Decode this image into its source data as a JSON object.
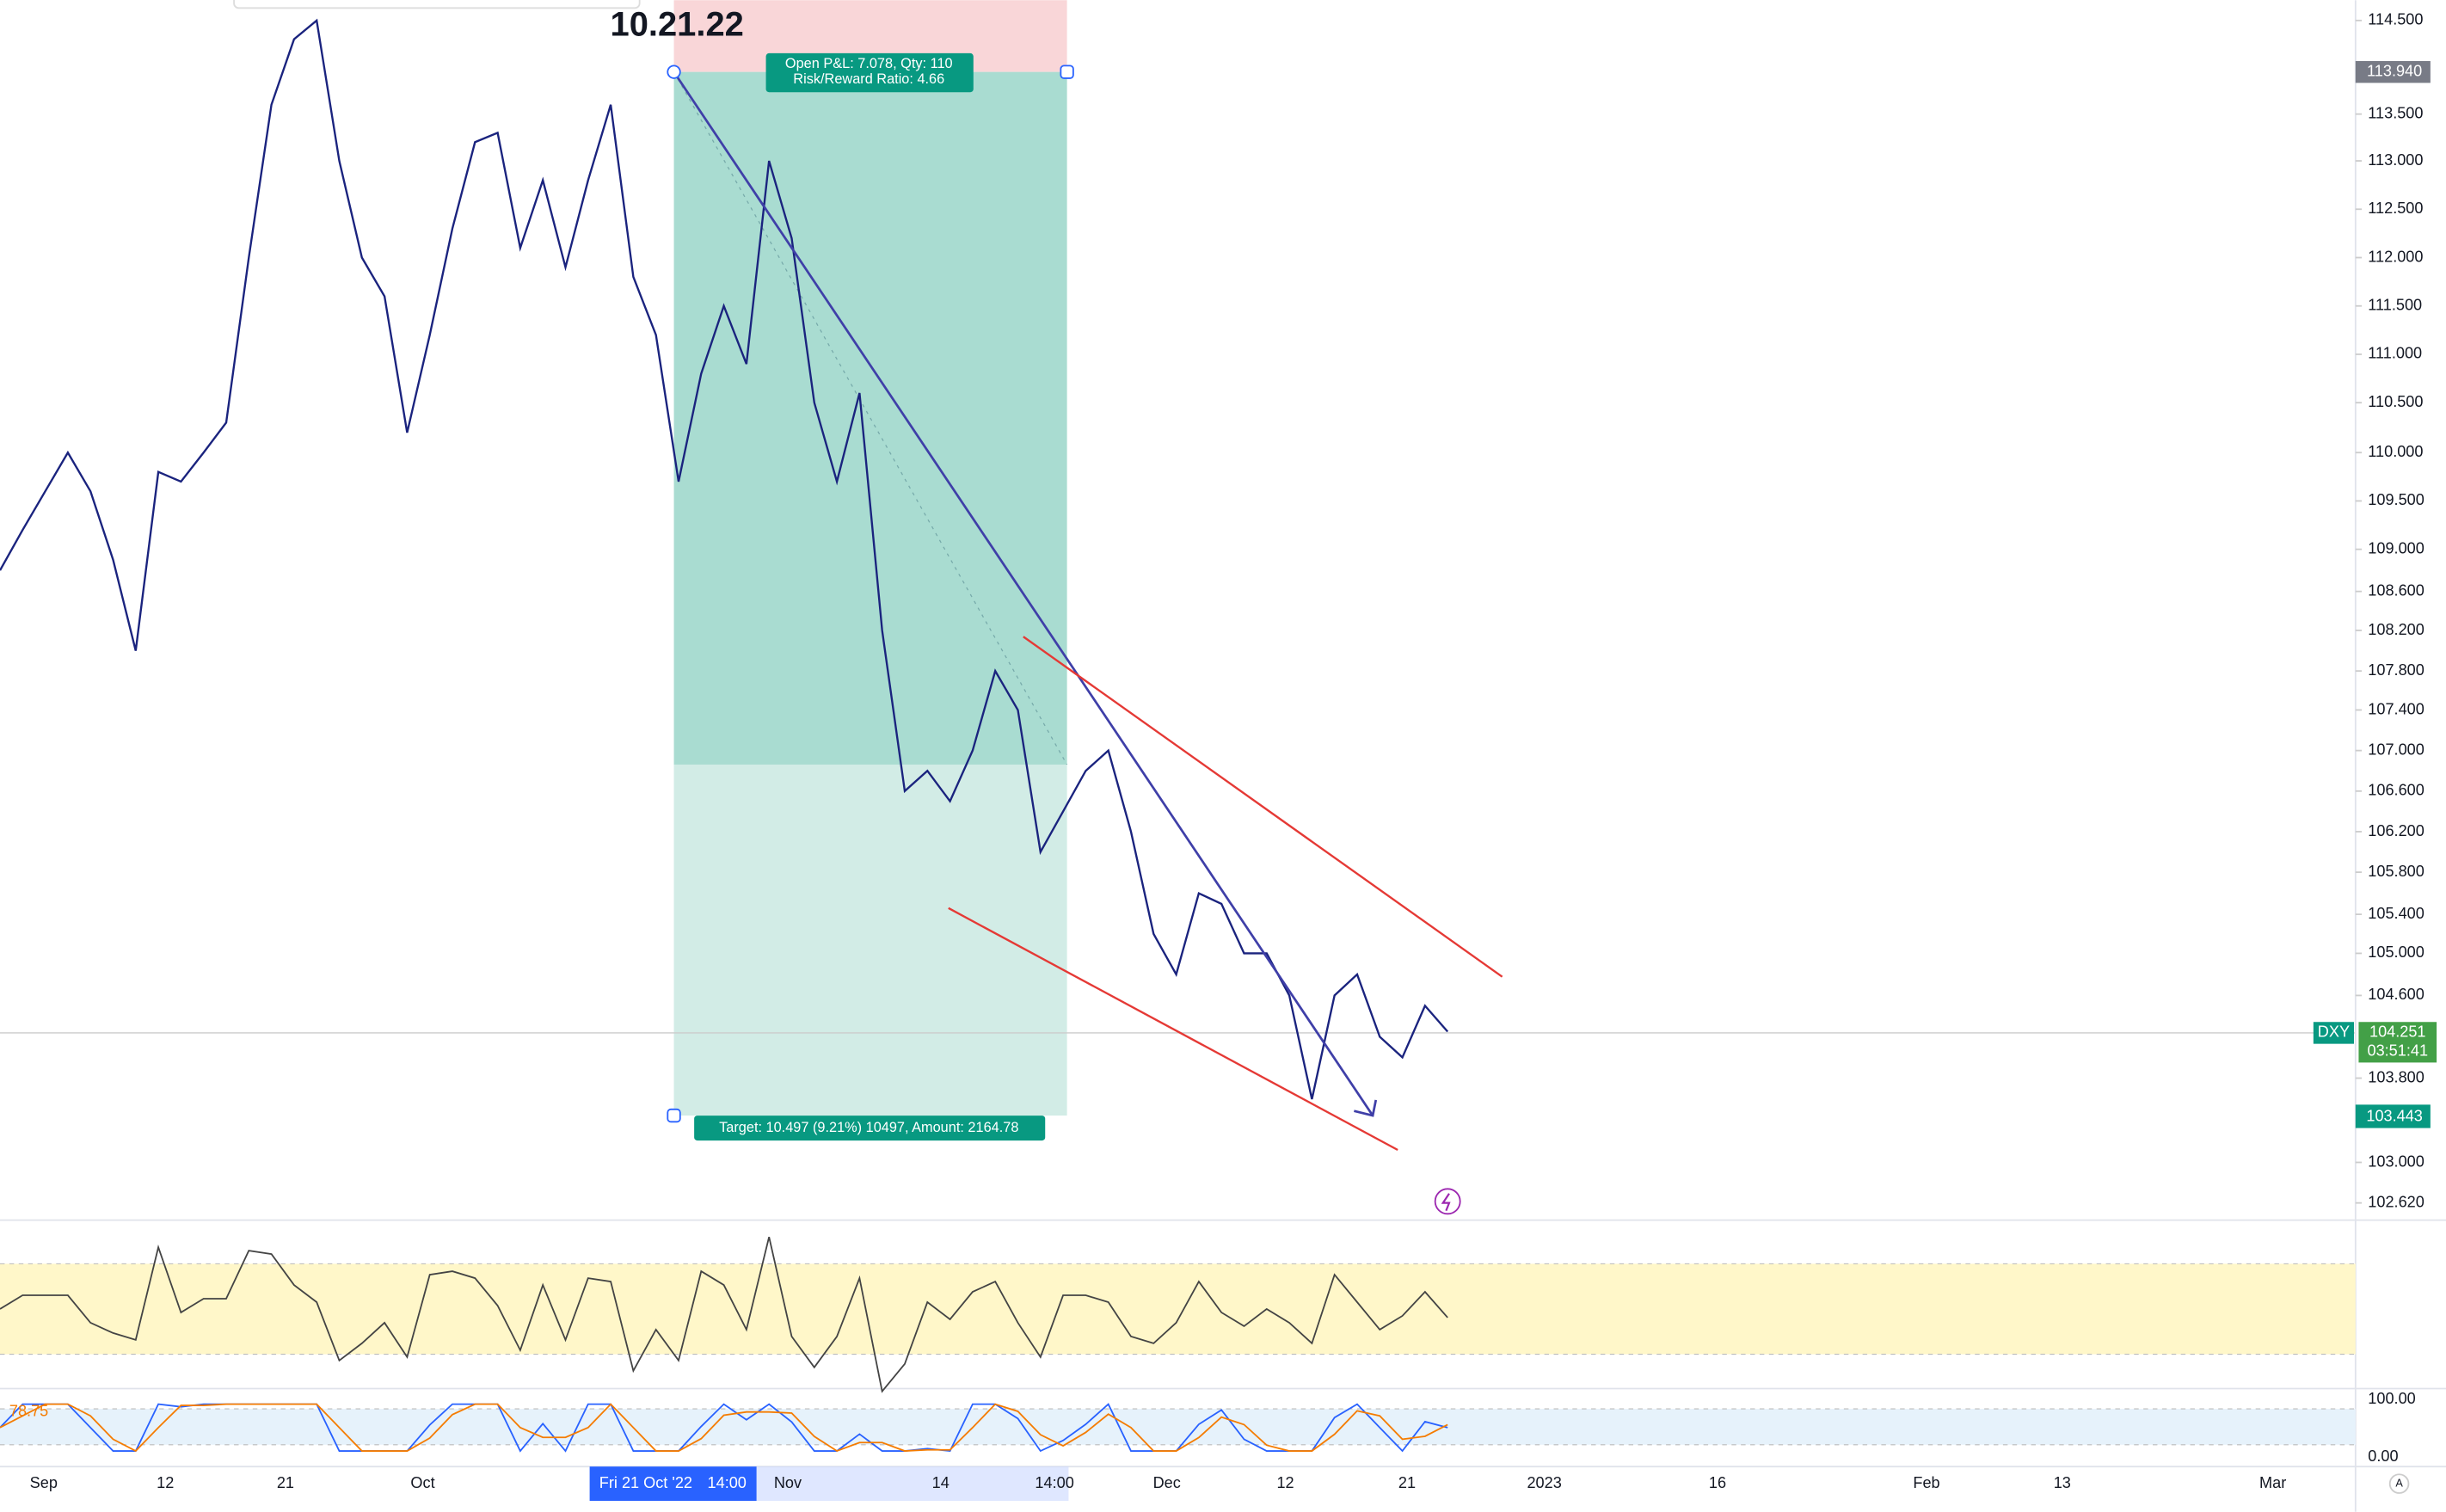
{
  "title": "10.21.22",
  "position": {
    "pnl": "Open P&L: 7.078, Qty: 110",
    "ratio": "Risk/Reward Ratio: 4.66",
    "target": "Target: 10.497 (9.21%) 10497, Amount: 2164.78"
  },
  "price_axis": {
    "ticks": [
      {
        "value": 114.5,
        "label": "114.500"
      },
      {
        "value": 113.5,
        "label": "113.500"
      },
      {
        "value": 113,
        "label": "113.000"
      },
      {
        "value": 112.5,
        "label": "112.500"
      },
      {
        "value": 112,
        "label": "112.000"
      },
      {
        "value": 111.5,
        "label": "111.500"
      },
      {
        "value": 111,
        "label": "111.000"
      },
      {
        "value": 110.5,
        "label": "110.500"
      },
      {
        "value": 110,
        "label": "110.000"
      },
      {
        "value": 109.5,
        "label": "109.500"
      },
      {
        "value": 109,
        "label": "109.000"
      },
      {
        "value": 108.6,
        "label": "108.600"
      },
      {
        "value": 108.2,
        "label": "108.200"
      },
      {
        "value": 107.8,
        "label": "107.800"
      },
      {
        "value": 107.4,
        "label": "107.400"
      },
      {
        "value": 107,
        "label": "107.000"
      },
      {
        "value": 106.6,
        "label": "106.600"
      },
      {
        "value": 106.2,
        "label": "106.200"
      },
      {
        "value": 105.8,
        "label": "105.800"
      },
      {
        "value": 105.4,
        "label": "105.400"
      },
      {
        "value": 105,
        "label": "105.000"
      },
      {
        "value": 104.6,
        "label": "104.600"
      },
      {
        "value": 103.8,
        "label": "103.800"
      },
      {
        "value": 103,
        "label": "103.000"
      },
      {
        "value": 102.62,
        "label": "102.620"
      }
    ],
    "entry_tag": "113.940",
    "symbol": "DXY",
    "last_price": "104.251",
    "countdown": "03:51:41",
    "low_tag": "103.443"
  },
  "time_axis": [
    "Sep",
    "12",
    "21",
    "Oct",
    "Fri 21 Oct '22",
    "14:00",
    "Nov",
    "14",
    "14:00",
    "Dec",
    "12",
    "21",
    "2023",
    "16",
    "Feb",
    "13",
    "Mar"
  ],
  "oscillator": {
    "top": "100.00",
    "bottom": "0.00",
    "current": "78.75"
  },
  "price_series": [
    108.8,
    109.2,
    109.6,
    110.0,
    109.6,
    108.9,
    108.0,
    109.8,
    109.7,
    110.0,
    110.3,
    112.0,
    113.6,
    114.3,
    114.5,
    113.0,
    112.0,
    111.6,
    110.2,
    111.2,
    112.3,
    113.2,
    113.3,
    112.1,
    112.8,
    111.9,
    112.8,
    113.6,
    111.8,
    111.2,
    109.7,
    110.8,
    111.5,
    110.9,
    113.0,
    112.2,
    110.5,
    109.7,
    110.6,
    108.2,
    106.6,
    106.8,
    106.5,
    107.0,
    107.8,
    107.4,
    106.0,
    106.4,
    106.8,
    107.0,
    106.2,
    105.2,
    104.8,
    105.6,
    105.5,
    105.0,
    105.0,
    104.6,
    103.6,
    104.6,
    104.8,
    104.2,
    104.0,
    104.5,
    104.25
  ]
}
